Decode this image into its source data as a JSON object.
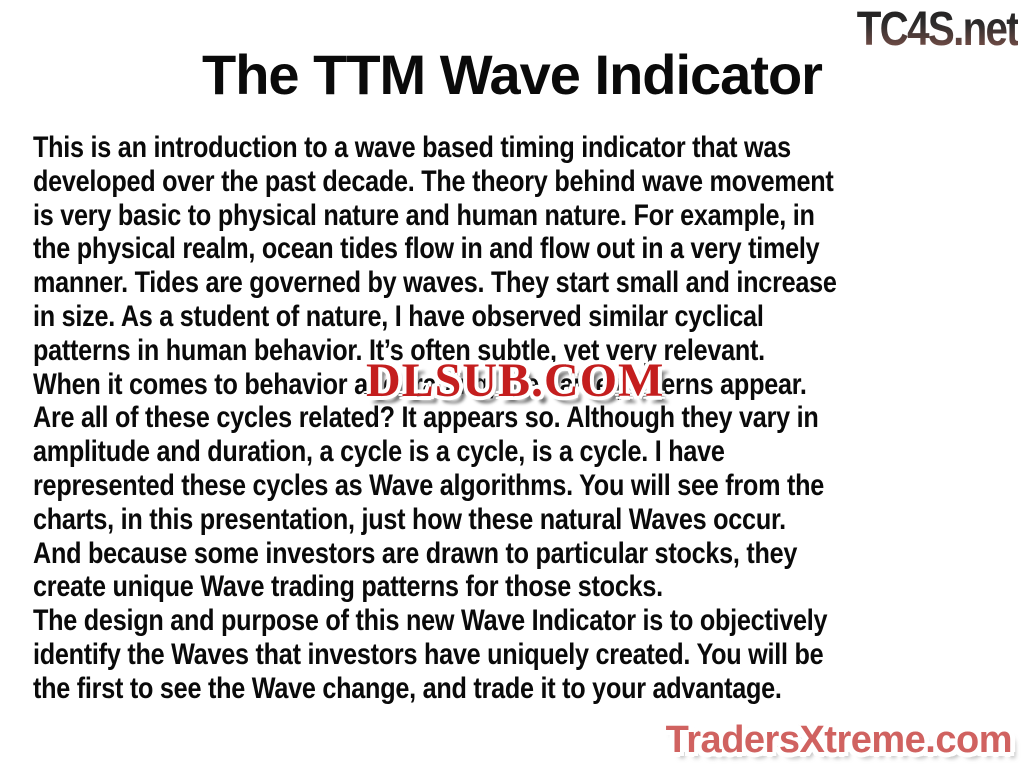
{
  "slide": {
    "title": "The TTM Wave Indicator",
    "body_lines": [
      "This is an introduction to a wave based timing indicator that was",
      "developed over the past decade. The theory behind wave movement",
      "is very basic to physical nature and human nature. For example, in",
      "the physical realm, ocean tides flow in and flow out in a very timely",
      "manner. Tides are governed by waves. They start small and increase",
      "in size. As a student of nature, I have observed similar cyclical",
      "patterns in human behavior. It’s often subtle, yet very relevant.",
      "When it comes to behavior and trading, the same patterns appear.",
      "Are all of these cycles related? It appears so. Although they vary in",
      "amplitude and duration, a cycle is a cycle, is a cycle. I have",
      "represented these cycles as Wave algorithms. You will see from the",
      "charts, in this presentation, just how these natural Waves occur.",
      "And because some investors are drawn to particular stocks, they",
      "create unique Wave trading patterns for those stocks.",
      "The design and purpose of this new Wave Indicator is to objectively",
      "identify the Waves that investors have uniquely created. You will be",
      "the first to see the Wave change, and trade it to your advantage."
    ]
  },
  "watermarks": {
    "top_right": "TC4S.net",
    "center": "DLSUB.COM",
    "bottom_right": "TradersXtreme.com"
  },
  "colors": {
    "background": "#ffffff",
    "body_text": "#0a0a0a",
    "dlsub_red": "#c41e1e",
    "tradersx_salmon": "#d06260",
    "tradersx_outline": "#7e2b28",
    "tc4s_gradient_top": "#1c1c1c",
    "tc4s_gradient_bottom": "#9c7065"
  }
}
